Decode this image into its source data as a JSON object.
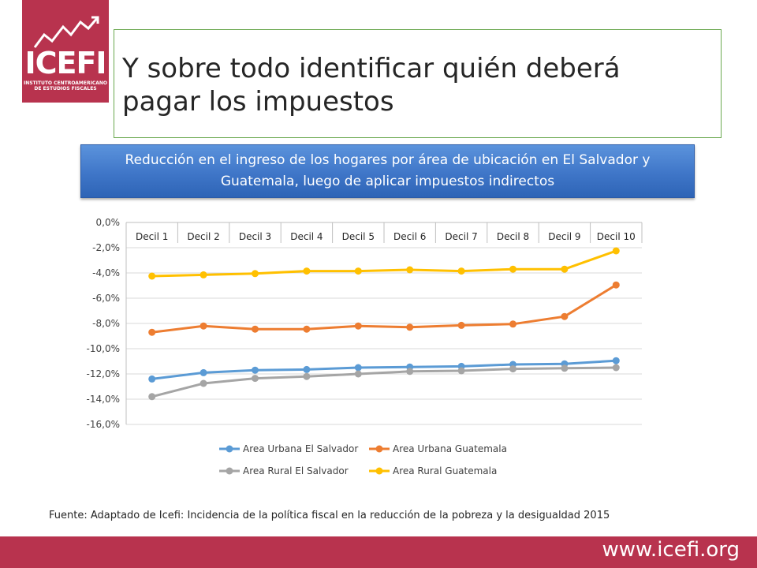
{
  "brand": {
    "logo_text": "ICEFI",
    "logo_sub_1": "INSTITUTO CENTROAMERICANO",
    "logo_sub_2": "DE ESTUDIOS FISCALES",
    "primary_color": "#b8334e"
  },
  "slide": {
    "title_line1": "Y sobre todo identificar quién deberá",
    "title_line2": "pagar los impuestos",
    "chart_header_line1": "Reducción en el ingreso de los hogares por área de ubicación en El Salvador y",
    "chart_header_line2": "Guatemala, luego de aplicar impuestos indirectos",
    "source": "Fuente: Adaptado de Icefi: Incidencia de la política fiscal en la reducción de la pobreza y la desigualdad 2015",
    "footer_url": "www.icefi.org"
  },
  "chart_data": {
    "type": "line",
    "categories": [
      "Decil 1",
      "Decil 2",
      "Decil 3",
      "Decil 4",
      "Decil 5",
      "Decil 6",
      "Decil 7",
      "Decil 8",
      "Decil 9",
      "Decil 10"
    ],
    "ylim": [
      -16,
      0
    ],
    "yticks": [
      0,
      -2,
      -4,
      -6,
      -8,
      -10,
      -12,
      -14,
      -16
    ],
    "ytick_labels": [
      "0,0%",
      "-2,0%",
      "-4,0%",
      "-6,0%",
      "-8,0%",
      "-10,0%",
      "-12,0%",
      "-14,0%",
      "-16,0%"
    ],
    "x_axis_position": "top",
    "grid": true,
    "legend_position": "bottom",
    "series": [
      {
        "name": "Area Urbana El Salvador",
        "color": "#5b9bd5",
        "values": [
          -12.4,
          -11.9,
          -11.7,
          -11.65,
          -11.5,
          -11.45,
          -11.4,
          -11.25,
          -11.2,
          -10.95
        ]
      },
      {
        "name": "Area Urbana Guatemala",
        "color": "#ed7d31",
        "values": [
          -8.7,
          -8.2,
          -8.45,
          -8.45,
          -8.2,
          -8.3,
          -8.15,
          -8.05,
          -7.45,
          -4.95
        ]
      },
      {
        "name": "Area Rural El Salvador",
        "color": "#a5a5a5",
        "values": [
          -13.8,
          -12.75,
          -12.35,
          -12.2,
          -12.0,
          -11.8,
          -11.75,
          -11.6,
          -11.55,
          -11.5
        ]
      },
      {
        "name": "Area Rural Guatemala",
        "color": "#ffc000",
        "values": [
          -4.25,
          -4.15,
          -4.05,
          -3.85,
          -3.85,
          -3.75,
          -3.85,
          -3.7,
          -3.7,
          -2.25
        ]
      }
    ]
  }
}
